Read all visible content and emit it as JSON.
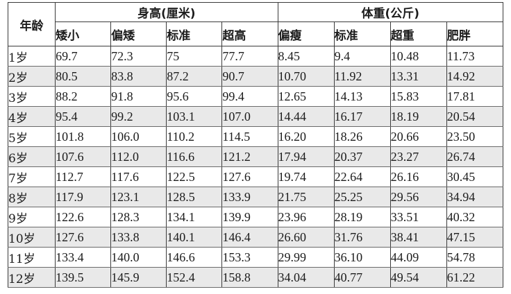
{
  "headers": {
    "age": "年龄",
    "height_group": "身高(厘米)",
    "weight_group": "体重(公斤)",
    "height_cols": [
      "矮小",
      "偏矮",
      "标准",
      "超高"
    ],
    "weight_cols": [
      "偏瘦",
      "标准",
      "超重",
      "肥胖"
    ]
  },
  "rows": [
    {
      "age": "1岁",
      "vals": [
        "69.7",
        "72.3",
        "75",
        "77.7",
        "8.45",
        "9.4",
        "10.48",
        "11.73"
      ]
    },
    {
      "age": "2岁",
      "vals": [
        "80.5",
        "83.8",
        "87.2",
        "90.7",
        "10.70",
        "11.92",
        "13.31",
        "14.92"
      ]
    },
    {
      "age": "3岁",
      "vals": [
        "88.2",
        "91.8",
        "95.6",
        "99.4",
        "12.65",
        "14.13",
        "15.83",
        "17.81"
      ]
    },
    {
      "age": "4岁",
      "vals": [
        "95.4",
        "99.2",
        "103.1",
        "107.0",
        "14.44",
        "16.17",
        "18.19",
        "20.54"
      ]
    },
    {
      "age": "5岁",
      "vals": [
        "101.8",
        "106.0",
        "110.2",
        "114.5",
        "16.20",
        "18.26",
        "20.66",
        "23.50"
      ]
    },
    {
      "age": "6岁",
      "vals": [
        "107.6",
        "112.0",
        "116.6",
        "121.2",
        "17.94",
        "20.37",
        "23.27",
        "26.74"
      ]
    },
    {
      "age": "7岁",
      "vals": [
        "112.7",
        "117.6",
        "122.5",
        "127.6",
        "19.74",
        "22.64",
        "26.16",
        "30.45"
      ]
    },
    {
      "age": "8岁",
      "vals": [
        "117.9",
        "123.1",
        "128.5",
        "133.9",
        "21.75",
        "25.25",
        "29.56",
        "34.94"
      ]
    },
    {
      "age": "9岁",
      "vals": [
        "122.6",
        "128.3",
        "134.1",
        "139.9",
        "23.96",
        "28.19",
        "33.51",
        "40.32"
      ]
    },
    {
      "age": "10岁",
      "vals": [
        "127.6",
        "133.8",
        "140.1",
        "146.4",
        "26.60",
        "31.76",
        "38.41",
        "47.15"
      ]
    },
    {
      "age": "11岁",
      "vals": [
        "133.4",
        "140.0",
        "146.6",
        "153.3",
        "29.99",
        "36.10",
        "44.09",
        "54.78"
      ]
    },
    {
      "age": "12岁",
      "vals": [
        "139.5",
        "145.9",
        "152.4",
        "158.8",
        "34.04",
        "40.77",
        "49.54",
        "61.22"
      ]
    }
  ]
}
